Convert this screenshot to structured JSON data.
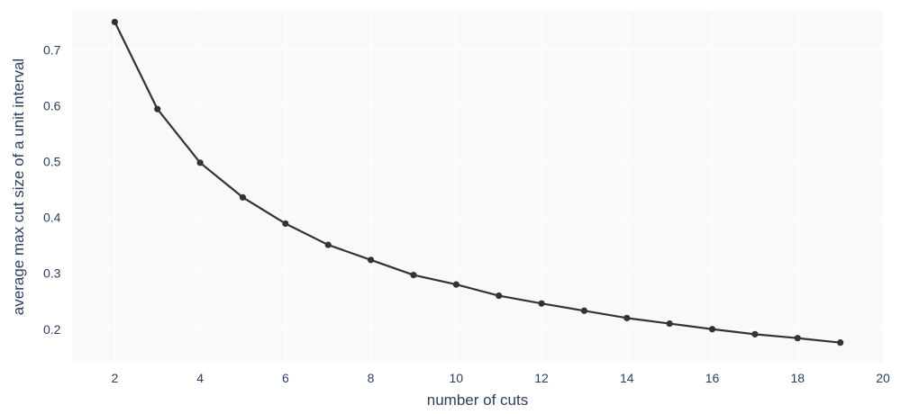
{
  "chart_data": {
    "type": "line",
    "title": "",
    "xlabel": "number of cuts",
    "ylabel": "average max cut size of a unit interval",
    "xlim": [
      1,
      20
    ],
    "ylim": [
      0.14,
      0.77
    ],
    "xticks": [
      2,
      4,
      6,
      8,
      10,
      12,
      14,
      16,
      18,
      20
    ],
    "yticks": [
      0.2,
      0.3,
      0.4,
      0.5,
      0.6,
      0.7
    ],
    "grid": true,
    "legend": "none",
    "series": [
      {
        "name": "average max cut",
        "x": [
          2,
          3,
          4,
          5,
          6,
          7,
          8,
          9,
          10,
          11,
          12,
          13,
          14,
          15,
          16,
          17,
          18,
          19
        ],
        "values": [
          0.75,
          0.594,
          0.498,
          0.436,
          0.389,
          0.351,
          0.324,
          0.297,
          0.28,
          0.26,
          0.246,
          0.233,
          0.22,
          0.21,
          0.2,
          0.191,
          0.184,
          0.176
        ]
      }
    ]
  },
  "style": {
    "plot_background": "#f9f9f9",
    "grid_color": "#ffffff",
    "line_color": "#333333",
    "text_color": "#2a3f5f"
  }
}
